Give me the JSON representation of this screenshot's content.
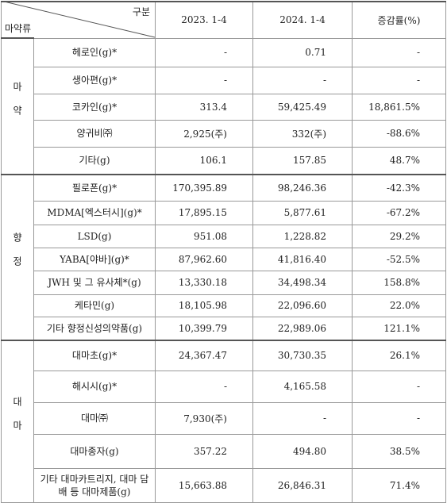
{
  "header": {
    "category": "구분",
    "drug_type": "마약류",
    "columns": [
      "2023. 1-4",
      "2024. 1-4",
      "증감률(%)"
    ]
  },
  "groups": [
    {
      "label": "마약",
      "rows": [
        [
          "헤로인(g)*",
          "-",
          "0.71",
          "-"
        ],
        [
          "생아편(g)*",
          "-",
          "-",
          "-"
        ],
        [
          "코카인(g)*",
          "313.4",
          "59,425.49",
          "18,861.5%"
        ],
        [
          "양귀비㈜",
          "2,925(주)",
          "332(주)",
          "-88.6%"
        ],
        [
          "기타(g)",
          "106.1",
          "157.85",
          "48.7%"
        ]
      ]
    },
    {
      "label": "향정",
      "rows": [
        [
          "필로폰(g)*",
          "170,395.89",
          "98,246.36",
          "-42.3%"
        ],
        [
          "MDMA[엑스터시](g)*",
          "17,895.15",
          "5,877.61",
          "-67.2%"
        ],
        [
          "LSD(g)",
          "951.08",
          "1,228.82",
          "29.2%"
        ],
        [
          "YABA[야바](g)*",
          "87,962.60",
          "41,816.40",
          "-52.5%"
        ],
        [
          "JWH 및 그 유사체*(g)",
          "13,330.18",
          "34,498.34",
          "158.8%"
        ],
        [
          "케타민(g)",
          "18,105.98",
          "22,096.60",
          "22.0%"
        ],
        [
          "기타 향정신성의약품(g)",
          "10,399.79",
          "22,989.06",
          "121.1%"
        ]
      ]
    },
    {
      "label": "대마",
      "rows": [
        [
          "대마초(g)*",
          "24,367.47",
          "30,730.35",
          "26.1%"
        ],
        [
          "해시시(g)*",
          "-",
          "4,165.58",
          "-"
        ],
        [
          "대마㈜",
          "7,930(주)",
          "-",
          "-"
        ],
        [
          "대마종자(g)",
          "357.22",
          "494.80",
          "38.5%"
        ],
        [
          "기타 대마카트리지, 대마 담배 등 대마제품(g)",
          "15,663.88",
          "26,846.31",
          "71.4%"
        ]
      ]
    }
  ]
}
